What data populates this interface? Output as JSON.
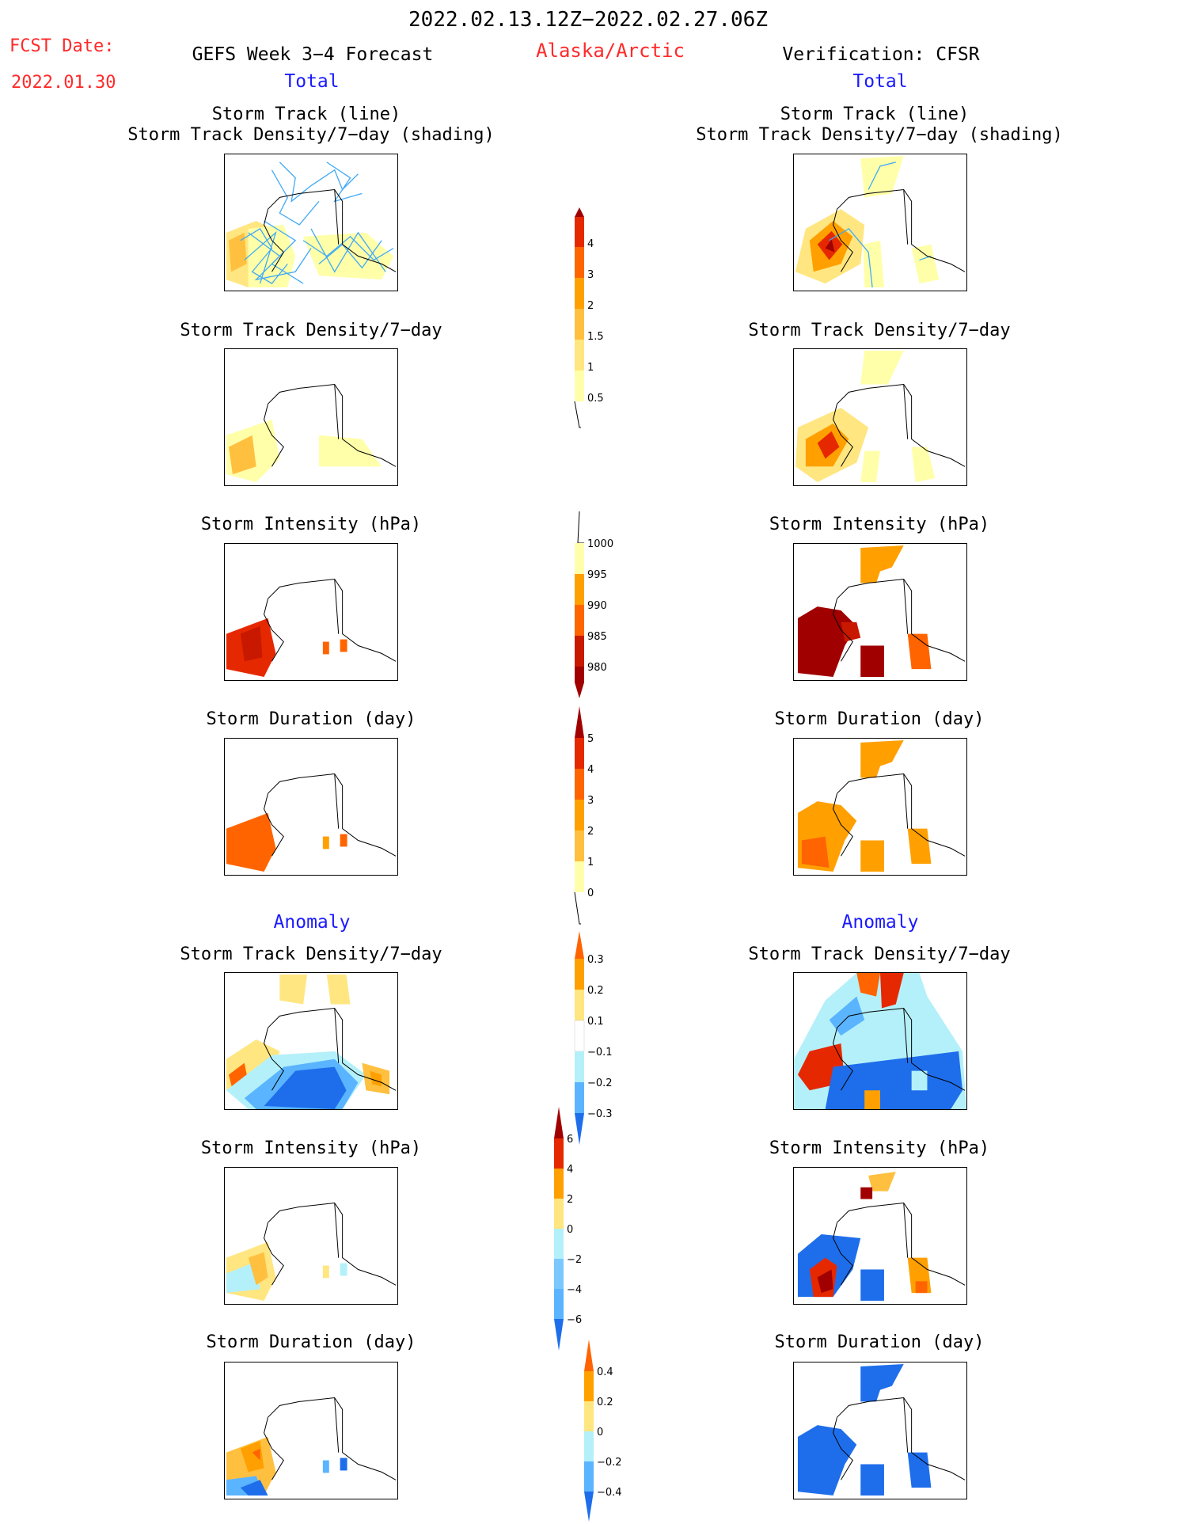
{
  "header": {
    "date_range": "2022.02.13.12Z−2022.02.27.06Z",
    "fcst_label": "FCST Date:",
    "fcst_date": "2022.01.30",
    "forecast_title": "GEFS Week 3−4 Forecast",
    "region": "Alaska/Arctic",
    "verification": "Verification: CFSR",
    "total_left": "Total",
    "total_right": "Total",
    "anomaly_left": "Anomaly",
    "anomaly_right": "Anomaly"
  },
  "panels": {
    "track_title_1": "Storm Track (line)",
    "track_title_2": "Storm Track Density/7−day (shading)",
    "density": "Storm Track Density/7−day",
    "intensity": "Storm Intensity (hPa)",
    "duration": "Storm Duration (day)"
  },
  "colorbars": {
    "density_total": [
      "4",
      "3",
      "2",
      "1.5",
      "1",
      "0.5"
    ],
    "intensity_total": [
      "1000",
      "995",
      "990",
      "985",
      "980"
    ],
    "duration_total": [
      "5",
      "4",
      "3",
      "2",
      "1",
      "0"
    ],
    "density_anom": [
      "0.3",
      "0.2",
      "0.1",
      "−0.1",
      "−0.2",
      "−0.3"
    ],
    "intensity_anom": [
      "6",
      "4",
      "2",
      "0",
      "−2",
      "−4",
      "−6"
    ],
    "duration_anom": [
      "0.4",
      "0.2",
      "0",
      "−0.2",
      "−0.4"
    ]
  },
  "colors": {
    "yellow_light": "#ffffaa",
    "yellow": "#ffe680",
    "gold": "#ffc040",
    "orange": "#ffa000",
    "orange_red": "#ff6400",
    "red": "#e62800",
    "dark_red": "#a00000",
    "light_blue": "#b4f0fa",
    "mid_blue": "#5ab4ff",
    "blue": "#1e6eeb",
    "track_line": "#3fa9f5"
  }
}
